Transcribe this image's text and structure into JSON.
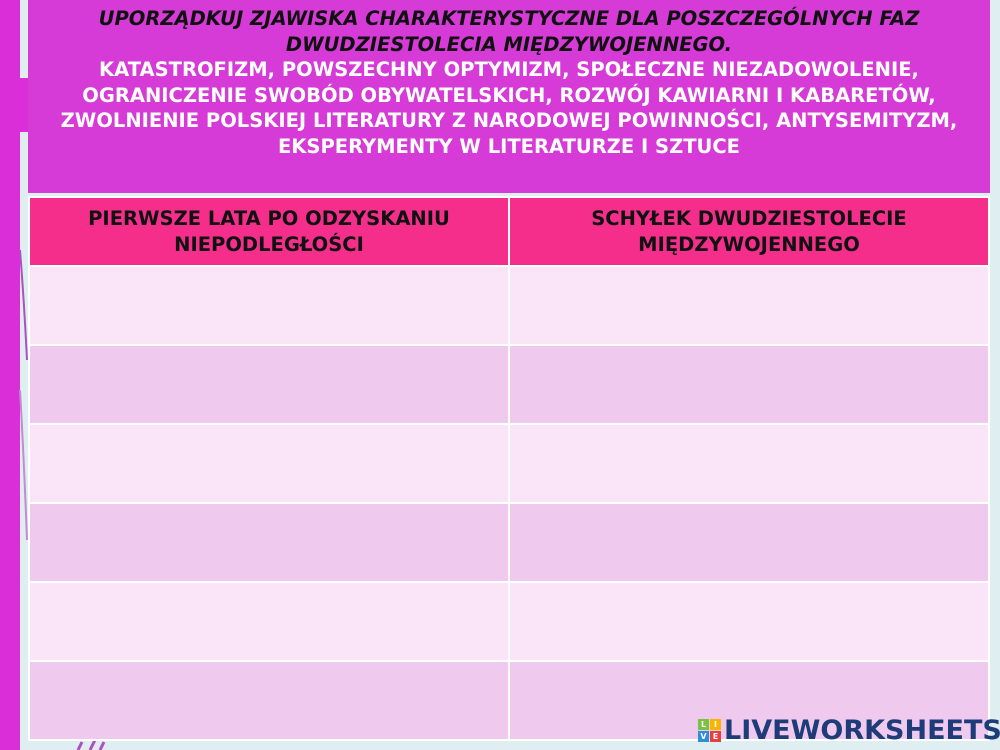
{
  "instruction": {
    "question": "UPORZĄDKUJ ZJAWISKA CHARAKTERYSTYCZNE DLA POSZCZEGÓLNYCH FAZ DWUDZIESTOLECIA MIĘDZYWOJENNEGO.",
    "word_bank": "KATASTROFIZM, POWSZECHNY OPTYMIZM, SPOŁECZNE NIEZADOWOLENIE, OGRANICZENIE SWOBÓD OBYWATELSKICH, ROZWÓJ KAWIARNI I KABARETÓW, ZWOLNIENIE POLSKIEJ LITERATURY Z NARODOWEJ POWINNOŚCI, ANTYSEMITYZM, EKSPERYMENTY W LITERATURZE I SZTUCE"
  },
  "table": {
    "columns": [
      "PIERWSZE LATA PO ODZYSKANIU NIEPODLEGŁOŚCI",
      "SCHYŁEK DWUDZIESTOLECIE MIĘDZYWOJENNEGO"
    ],
    "rows": [
      [
        "",
        ""
      ],
      [
        "",
        ""
      ],
      [
        "",
        ""
      ],
      [
        "",
        ""
      ],
      [
        "",
        ""
      ],
      [
        "",
        ""
      ]
    ]
  },
  "logo": {
    "text": "LIVEWORKSHEETS",
    "letters": [
      "L",
      "I",
      "V",
      "E"
    ]
  },
  "colors": {
    "accent_purple": "#d63ad7",
    "header_pink": "#f52e8c",
    "row_light": "#f9e5f7",
    "row_dark": "#f0c9ef",
    "logo": "#1d3c78"
  }
}
